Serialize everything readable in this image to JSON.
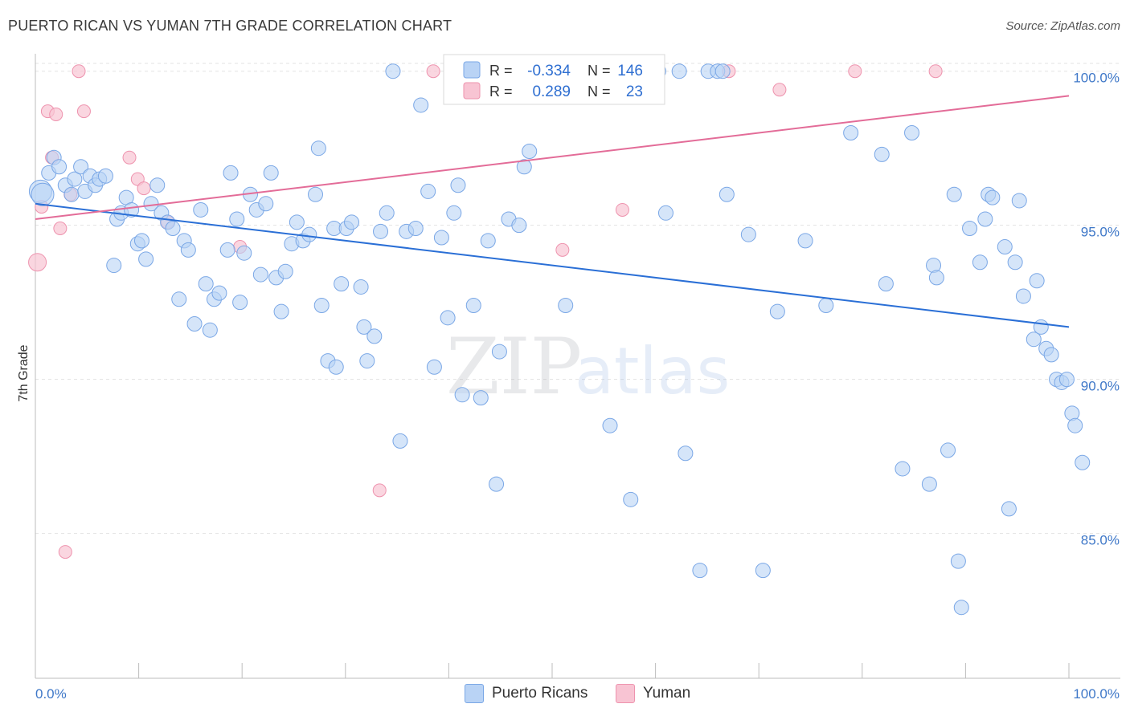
{
  "title": "PUERTO RICAN VS YUMAN 7TH GRADE CORRELATION CHART",
  "source": "Source: ZipAtlas.com",
  "watermark": {
    "zip": "ZIP",
    "atlas": "atlas"
  },
  "legend": {
    "rows": [
      {
        "r_label": "R =",
        "r_value": "-0.334",
        "n_label": "N =",
        "n_value": "146"
      },
      {
        "r_label": "R =",
        "r_value": "0.289",
        "n_label": "N =",
        "n_value": "23"
      }
    ]
  },
  "bottom_legend": [
    "Puerto Ricans",
    "Yuman"
  ],
  "colors": {
    "blue_fill": "#b9d3f5",
    "blue_stroke": "#7aa7e6",
    "blue_line": "#2a6fd6",
    "pink_fill": "#f8c4d3",
    "pink_stroke": "#ee93ae",
    "pink_line": "#e36c98",
    "tick_text": "#3f78c8"
  },
  "chart_data": {
    "type": "scatter",
    "xlabel": "",
    "ylabel": "7th Grade",
    "xlim": [
      0,
      100
    ],
    "ylim": [
      80.3,
      100.8
    ],
    "x_tick_labels": [
      "0.0%",
      "100.0%"
    ],
    "y_ticks": [
      85,
      90,
      95,
      100
    ],
    "y_tick_labels": [
      "85.0%",
      "90.0%",
      "95.0%",
      "100.0%"
    ],
    "grid": true,
    "series": [
      {
        "name": "Puerto Ricans",
        "trend": {
          "x": [
            0,
            100
          ],
          "y": [
            95.7,
            91.7
          ]
        },
        "points": [
          [
            0.5,
            96.1
          ],
          [
            0.7,
            96.0
          ],
          [
            1.3,
            96.7
          ],
          [
            1.8,
            97.2
          ],
          [
            2.3,
            96.9
          ],
          [
            2.9,
            96.3
          ],
          [
            3.5,
            96.0
          ],
          [
            3.8,
            96.5
          ],
          [
            4.4,
            96.9
          ],
          [
            4.8,
            96.1
          ],
          [
            5.3,
            96.6
          ],
          [
            5.8,
            96.3
          ],
          [
            6.2,
            96.5
          ],
          [
            6.8,
            96.6
          ],
          [
            7.6,
            93.7
          ],
          [
            7.9,
            95.2
          ],
          [
            8.3,
            95.4
          ],
          [
            8.8,
            95.9
          ],
          [
            9.3,
            95.5
          ],
          [
            9.9,
            94.4
          ],
          [
            10.3,
            94.5
          ],
          [
            10.7,
            93.9
          ],
          [
            11.2,
            95.7
          ],
          [
            11.8,
            96.3
          ],
          [
            12.2,
            95.4
          ],
          [
            12.8,
            95.1
          ],
          [
            13.3,
            94.9
          ],
          [
            13.9,
            92.6
          ],
          [
            14.4,
            94.5
          ],
          [
            14.8,
            94.2
          ],
          [
            15.4,
            91.8
          ],
          [
            16.0,
            95.5
          ],
          [
            16.5,
            93.1
          ],
          [
            16.9,
            91.6
          ],
          [
            17.3,
            92.6
          ],
          [
            17.8,
            92.8
          ],
          [
            18.6,
            94.2
          ],
          [
            18.9,
            96.7
          ],
          [
            19.5,
            95.2
          ],
          [
            19.8,
            92.5
          ],
          [
            20.2,
            94.1
          ],
          [
            20.8,
            96.0
          ],
          [
            21.4,
            95.5
          ],
          [
            21.8,
            93.4
          ],
          [
            22.3,
            95.7
          ],
          [
            22.8,
            96.7
          ],
          [
            23.3,
            93.3
          ],
          [
            23.8,
            92.2
          ],
          [
            24.2,
            93.5
          ],
          [
            24.8,
            94.4
          ],
          [
            25.3,
            95.1
          ],
          [
            25.9,
            94.5
          ],
          [
            26.5,
            94.7
          ],
          [
            27.1,
            96.0
          ],
          [
            27.4,
            97.5
          ],
          [
            27.7,
            92.4
          ],
          [
            28.3,
            90.6
          ],
          [
            28.9,
            94.9
          ],
          [
            29.1,
            90.4
          ],
          [
            29.6,
            93.1
          ],
          [
            30.1,
            94.9
          ],
          [
            30.6,
            95.1
          ],
          [
            31.5,
            93.0
          ],
          [
            31.8,
            91.7
          ],
          [
            32.1,
            90.6
          ],
          [
            32.8,
            91.4
          ],
          [
            33.4,
            94.8
          ],
          [
            34.0,
            95.4
          ],
          [
            34.6,
            100.0
          ],
          [
            35.3,
            88.0
          ],
          [
            35.9,
            94.8
          ],
          [
            36.8,
            94.9
          ],
          [
            37.3,
            98.9
          ],
          [
            38.0,
            96.1
          ],
          [
            38.6,
            90.4
          ],
          [
            39.3,
            94.6
          ],
          [
            39.9,
            92.0
          ],
          [
            40.5,
            95.4
          ],
          [
            40.9,
            96.3
          ],
          [
            41.3,
            89.5
          ],
          [
            41.9,
            100.0
          ],
          [
            42.4,
            92.4
          ],
          [
            43.1,
            89.4
          ],
          [
            43.8,
            94.5
          ],
          [
            44.6,
            86.6
          ],
          [
            44.9,
            90.9
          ],
          [
            45.8,
            95.2
          ],
          [
            46.8,
            95.0
          ],
          [
            47.3,
            96.9
          ],
          [
            47.8,
            97.4
          ],
          [
            48.8,
            100.0
          ],
          [
            49.5,
            100.0
          ],
          [
            51.3,
            92.4
          ],
          [
            53.0,
            100.0
          ],
          [
            55.6,
            88.5
          ],
          [
            57.6,
            86.1
          ],
          [
            58.5,
            100.0
          ],
          [
            60.3,
            100.0
          ],
          [
            61.0,
            95.4
          ],
          [
            62.3,
            100.0
          ],
          [
            62.9,
            87.6
          ],
          [
            64.3,
            83.8
          ],
          [
            65.1,
            100.0
          ],
          [
            66.0,
            100.0
          ],
          [
            66.5,
            100.0
          ],
          [
            66.9,
            96.0
          ],
          [
            69.0,
            94.7
          ],
          [
            70.4,
            83.8
          ],
          [
            71.8,
            92.2
          ],
          [
            74.5,
            94.5
          ],
          [
            76.5,
            92.4
          ],
          [
            78.9,
            98.0
          ],
          [
            81.9,
            97.3
          ],
          [
            82.3,
            93.1
          ],
          [
            83.9,
            87.1
          ],
          [
            84.8,
            98.0
          ],
          [
            86.5,
            86.6
          ],
          [
            86.9,
            93.7
          ],
          [
            87.2,
            93.3
          ],
          [
            88.3,
            87.7
          ],
          [
            88.9,
            96.0
          ],
          [
            89.3,
            84.1
          ],
          [
            89.6,
            82.6
          ],
          [
            90.4,
            94.9
          ],
          [
            91.4,
            93.8
          ],
          [
            91.9,
            95.2
          ],
          [
            92.2,
            96.0
          ],
          [
            92.6,
            95.9
          ],
          [
            93.8,
            94.3
          ],
          [
            94.2,
            85.8
          ],
          [
            94.8,
            93.8
          ],
          [
            95.2,
            95.8
          ],
          [
            95.6,
            92.7
          ],
          [
            96.6,
            91.3
          ],
          [
            96.9,
            93.2
          ],
          [
            97.3,
            91.7
          ],
          [
            97.8,
            91.0
          ],
          [
            98.3,
            90.8
          ],
          [
            98.8,
            90.0
          ],
          [
            99.3,
            89.9
          ],
          [
            99.8,
            90.0
          ],
          [
            100.3,
            88.9
          ],
          [
            100.6,
            88.5
          ],
          [
            101.3,
            87.3
          ]
        ]
      },
      {
        "name": "Yuman",
        "trend": {
          "x": [
            0,
            100
          ],
          "y": [
            95.2,
            99.2
          ]
        },
        "points": [
          [
            0.2,
            93.8
          ],
          [
            0.6,
            95.6
          ],
          [
            1.2,
            98.7
          ],
          [
            1.6,
            97.2
          ],
          [
            2.0,
            98.6
          ],
          [
            2.4,
            94.9
          ],
          [
            2.9,
            84.4
          ],
          [
            3.4,
            96.0
          ],
          [
            4.2,
            100.0
          ],
          [
            4.7,
            98.7
          ],
          [
            9.1,
            97.2
          ],
          [
            9.9,
            96.5
          ],
          [
            10.5,
            96.2
          ],
          [
            12.8,
            95.1
          ],
          [
            19.8,
            94.3
          ],
          [
            33.3,
            86.4
          ],
          [
            38.5,
            100.0
          ],
          [
            51.0,
            94.2
          ],
          [
            56.8,
            95.5
          ],
          [
            67.1,
            100.0
          ],
          [
            72.0,
            99.4
          ],
          [
            79.3,
            100.0
          ],
          [
            87.1,
            100.0
          ]
        ]
      }
    ]
  }
}
